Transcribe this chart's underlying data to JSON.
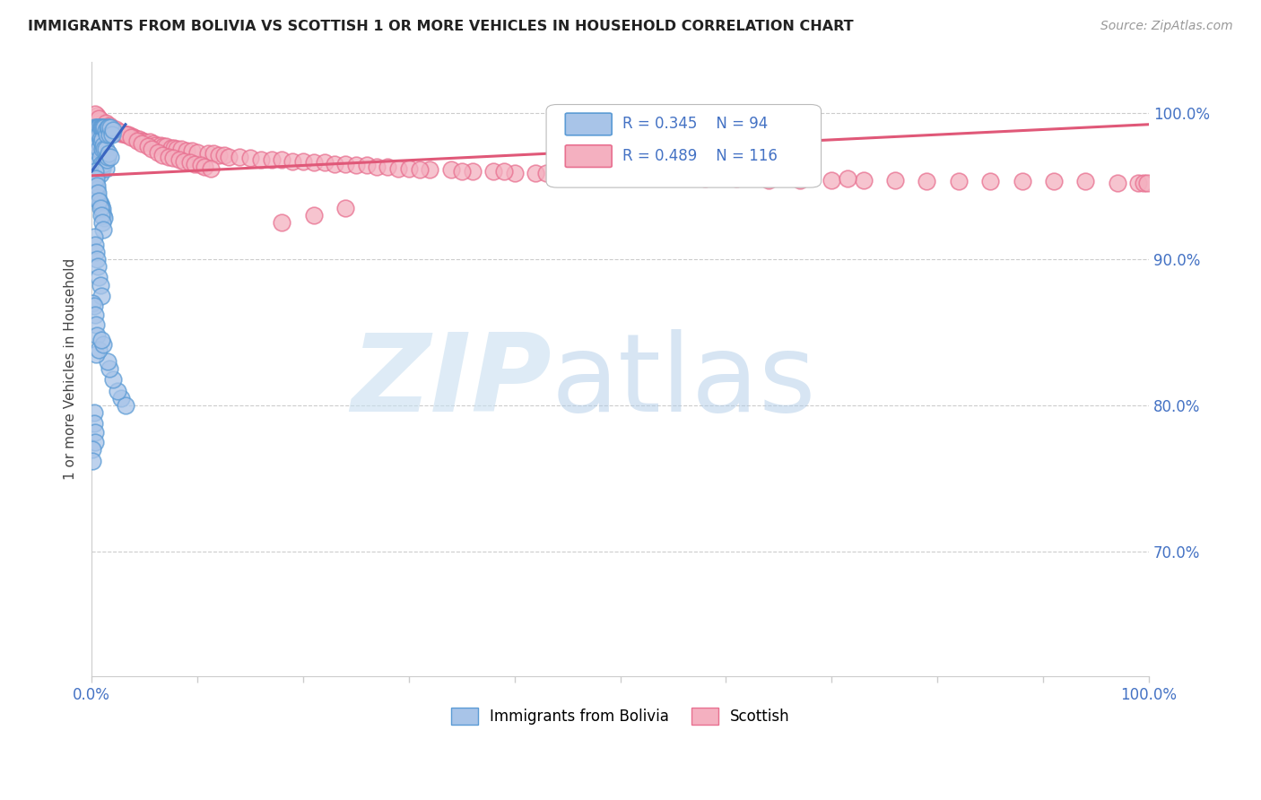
{
  "title": "IMMIGRANTS FROM BOLIVIA VS SCOTTISH 1 OR MORE VEHICLES IN HOUSEHOLD CORRELATION CHART",
  "source": "Source: ZipAtlas.com",
  "ylabel": "1 or more Vehicles in Household",
  "ytick_labels": [
    "70.0%",
    "80.0%",
    "90.0%",
    "100.0%"
  ],
  "ytick_values": [
    0.7,
    0.8,
    0.9,
    1.0
  ],
  "xlim": [
    0.0,
    1.0
  ],
  "ylim": [
    0.615,
    1.035
  ],
  "bolivia_color": "#5b9bd5",
  "scottish_color": "#e87090",
  "bolivia_scatter_color": "#a8c4e8",
  "scottish_scatter_color": "#f4b0c0",
  "trendline_bolivia_color": "#3a65c0",
  "trendline_scottish_color": "#e05878",
  "legend_R_N_color": "#4472c4",
  "watermark_zip_color": "#c8dff0",
  "watermark_atlas_color": "#b0cce8",
  "bolivia_x": [
    0.002,
    0.003,
    0.003,
    0.004,
    0.004,
    0.005,
    0.005,
    0.005,
    0.006,
    0.006,
    0.006,
    0.007,
    0.007,
    0.007,
    0.007,
    0.008,
    0.008,
    0.008,
    0.008,
    0.009,
    0.009,
    0.009,
    0.01,
    0.01,
    0.01,
    0.01,
    0.011,
    0.011,
    0.011,
    0.012,
    0.012,
    0.013,
    0.013,
    0.013,
    0.014,
    0.014,
    0.015,
    0.015,
    0.016,
    0.016,
    0.017,
    0.018,
    0.018,
    0.019,
    0.02,
    0.002,
    0.003,
    0.004,
    0.005,
    0.006,
    0.007,
    0.008,
    0.009,
    0.01,
    0.011,
    0.012,
    0.003,
    0.004,
    0.005,
    0.006,
    0.007,
    0.008,
    0.009,
    0.01,
    0.011,
    0.002,
    0.003,
    0.004,
    0.005,
    0.006,
    0.007,
    0.008,
    0.009,
    0.001,
    0.002,
    0.003,
    0.004,
    0.005,
    0.028,
    0.032,
    0.002,
    0.002,
    0.003,
    0.003,
    0.001,
    0.001,
    0.024,
    0.02,
    0.017,
    0.015,
    0.004,
    0.007,
    0.011,
    0.009
  ],
  "bolivia_y": [
    0.99,
    0.985,
    0.975,
    0.99,
    0.97,
    0.99,
    0.985,
    0.965,
    0.99,
    0.98,
    0.96,
    0.99,
    0.985,
    0.975,
    0.96,
    0.99,
    0.982,
    0.97,
    0.958,
    0.99,
    0.98,
    0.965,
    0.99,
    0.982,
    0.975,
    0.962,
    0.99,
    0.978,
    0.965,
    0.99,
    0.975,
    0.988,
    0.975,
    0.962,
    0.985,
    0.968,
    0.99,
    0.97,
    0.99,
    0.972,
    0.985,
    0.99,
    0.97,
    0.985,
    0.988,
    0.955,
    0.945,
    0.952,
    0.948,
    0.942,
    0.94,
    0.938,
    0.936,
    0.934,
    0.93,
    0.928,
    0.96,
    0.955,
    0.95,
    0.945,
    0.94,
    0.935,
    0.93,
    0.925,
    0.92,
    0.915,
    0.91,
    0.905,
    0.9,
    0.895,
    0.888,
    0.882,
    0.875,
    0.87,
    0.868,
    0.862,
    0.855,
    0.848,
    0.805,
    0.8,
    0.795,
    0.788,
    0.782,
    0.775,
    0.77,
    0.762,
    0.81,
    0.818,
    0.825,
    0.83,
    0.835,
    0.838,
    0.842,
    0.845
  ],
  "scottish_x": [
    0.005,
    0.008,
    0.01,
    0.012,
    0.015,
    0.018,
    0.02,
    0.022,
    0.025,
    0.028,
    0.03,
    0.032,
    0.035,
    0.038,
    0.04,
    0.042,
    0.045,
    0.048,
    0.05,
    0.055,
    0.058,
    0.06,
    0.065,
    0.068,
    0.07,
    0.075,
    0.078,
    0.08,
    0.085,
    0.09,
    0.095,
    0.1,
    0.11,
    0.115,
    0.12,
    0.125,
    0.13,
    0.14,
    0.15,
    0.16,
    0.17,
    0.18,
    0.19,
    0.2,
    0.21,
    0.22,
    0.23,
    0.24,
    0.25,
    0.26,
    0.27,
    0.28,
    0.29,
    0.3,
    0.32,
    0.34,
    0.36,
    0.38,
    0.4,
    0.42,
    0.44,
    0.46,
    0.48,
    0.5,
    0.52,
    0.55,
    0.58,
    0.61,
    0.64,
    0.67,
    0.7,
    0.73,
    0.76,
    0.79,
    0.82,
    0.85,
    0.88,
    0.91,
    0.94,
    0.97,
    0.99,
    0.995,
    0.998,
    0.003,
    0.007,
    0.013,
    0.017,
    0.023,
    0.027,
    0.033,
    0.037,
    0.043,
    0.047,
    0.053,
    0.057,
    0.063,
    0.067,
    0.073,
    0.077,
    0.083,
    0.087,
    0.093,
    0.097,
    0.103,
    0.107,
    0.113,
    0.31,
    0.35,
    0.39,
    0.43,
    0.47,
    0.51,
    0.24,
    0.21,
    0.18,
    0.715
  ],
  "scottish_y": [
    0.998,
    0.995,
    0.993,
    0.992,
    0.99,
    0.99,
    0.988,
    0.988,
    0.987,
    0.986,
    0.986,
    0.985,
    0.985,
    0.984,
    0.983,
    0.982,
    0.982,
    0.981,
    0.98,
    0.98,
    0.979,
    0.978,
    0.978,
    0.977,
    0.977,
    0.976,
    0.976,
    0.975,
    0.975,
    0.974,
    0.974,
    0.973,
    0.972,
    0.972,
    0.971,
    0.971,
    0.97,
    0.97,
    0.969,
    0.968,
    0.968,
    0.968,
    0.967,
    0.967,
    0.966,
    0.966,
    0.965,
    0.965,
    0.964,
    0.964,
    0.963,
    0.963,
    0.962,
    0.962,
    0.961,
    0.961,
    0.96,
    0.96,
    0.959,
    0.959,
    0.958,
    0.958,
    0.957,
    0.957,
    0.956,
    0.956,
    0.955,
    0.955,
    0.954,
    0.954,
    0.954,
    0.954,
    0.954,
    0.953,
    0.953,
    0.953,
    0.953,
    0.953,
    0.953,
    0.952,
    0.952,
    0.952,
    0.952,
    0.999,
    0.996,
    0.993,
    0.991,
    0.989,
    0.987,
    0.985,
    0.983,
    0.981,
    0.979,
    0.977,
    0.975,
    0.973,
    0.971,
    0.97,
    0.969,
    0.968,
    0.967,
    0.966,
    0.965,
    0.964,
    0.963,
    0.962,
    0.961,
    0.96,
    0.96,
    0.959,
    0.958,
    0.957,
    0.935,
    0.93,
    0.925,
    0.955
  ],
  "bolivia_trend_x": [
    0.0,
    0.032
  ],
  "bolivia_trend_y": [
    0.96,
    0.992
  ],
  "scottish_trend_x": [
    0.0,
    1.0
  ],
  "scottish_trend_y": [
    0.957,
    0.992
  ]
}
